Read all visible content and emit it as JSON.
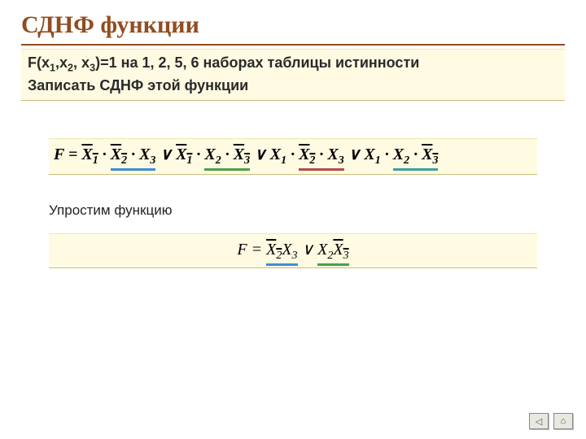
{
  "title": "СДНФ  функции",
  "problem": {
    "line1_prefix": "F(x",
    "s1": "1",
    "comma1": ",x",
    "s2": "2",
    "comma2": ", x",
    "s3": "3",
    "line1_suffix": ")=1 на 1, 2, 5, 6 наборах таблицы истинности",
    "line2": "Записать СДНФ этой функции"
  },
  "formula1": {
    "F": "F",
    "eq": " = ",
    "t1_a": "X",
    "t1_as": "1",
    "t1_b": "X",
    "t1_bs": "2",
    "t1_c": "X",
    "t1_cs": "3",
    "or": " ∨ ",
    "dot": " · "
  },
  "step_label": "Упростим функцию",
  "formula2": {
    "F": "F",
    "eq": " = ",
    "X": "X",
    "or": " ∨ "
  },
  "colors": {
    "title": "#924c1f",
    "box_bg": "#fffbe2",
    "blue": "#3b8fd4",
    "green": "#4aa04a",
    "red": "#b24a4a",
    "teal": "#3aa0a0"
  },
  "nav": {
    "back": "◁",
    "home": "⌂"
  }
}
